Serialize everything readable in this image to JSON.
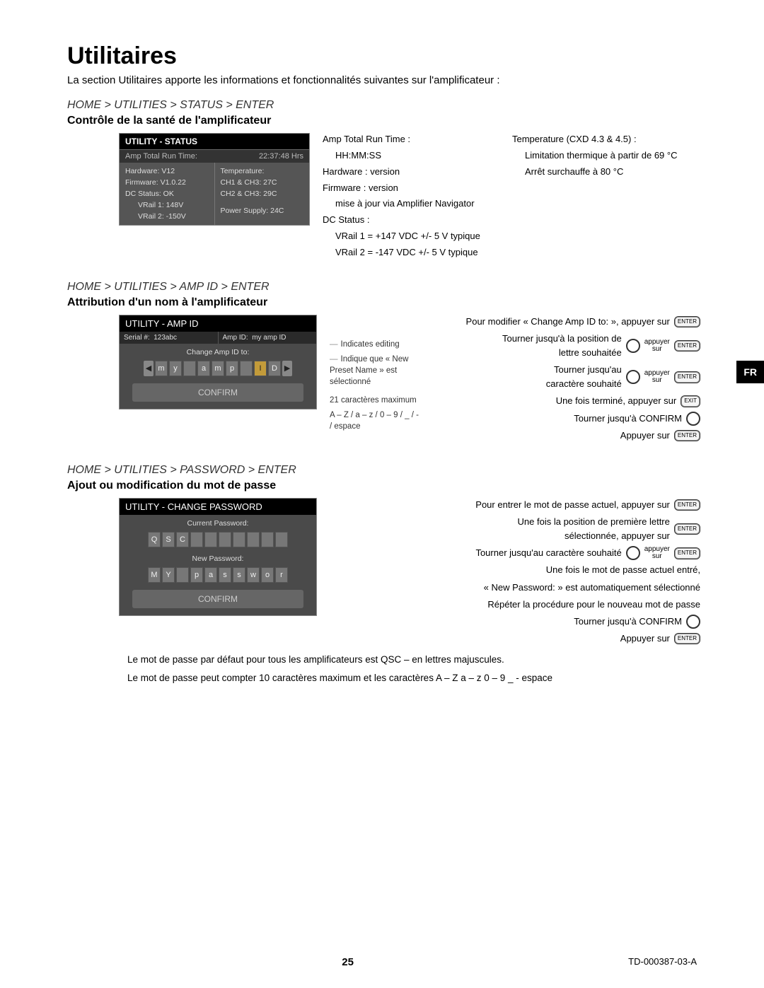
{
  "page": {
    "title": "Utilitaires",
    "intro": "La section Utilitaires apporte les informations et fonctionnalités suivantes sur l'amplificateur :",
    "page_number": "25",
    "doc_id": "TD-000387-03-A",
    "side_tab": "FR"
  },
  "status": {
    "nav": "HOME > UTILITIES > STATUS > ENTER",
    "heading": "Contrôle de la santé de l'amplificateur",
    "panel_title": "UTILITY - STATUS",
    "highlight_label": "Amp Total Run Time:",
    "highlight_value": "22:37:48 Hrs",
    "left": [
      "Hardware: V12",
      "Firmware: V1.0.22",
      "DC Status: OK",
      "VRail 1: 148V",
      "VRail 2: -150V"
    ],
    "right": [
      "Temperature:",
      "CH1 & CH3: 27C",
      "CH2 & CH3: 29C",
      "Power Supply: 24C"
    ],
    "desc1": {
      "a": "Amp Total Run Time :",
      "a2": "HH:MM:SS",
      "b": "Hardware : version",
      "c": "Firmware : version",
      "c2": "mise à jour via Amplifier Navigator",
      "d": "DC Status :",
      "d2": "VRail 1 = +147 VDC +/- 5 V typique",
      "d3": "VRail 2 = -147 VDC +/- 5 V typique"
    },
    "desc2": {
      "a": "Temperature (CXD 4.3 & 4.5) :",
      "a2": "Limitation thermique à partir de 69 °C",
      "a3": "Arrêt surchauffe à 80 °C"
    }
  },
  "ampid": {
    "nav": "HOME > UTILITIES > AMP ID > ENTER",
    "heading": "Attribution d'un nom à l'amplificateur",
    "panel_title": "UTILITY - AMP ID",
    "serial_lbl": "Serial #:",
    "serial_val": "123abc",
    "ampid_lbl": "Amp ID:",
    "ampid_val": "my amp ID",
    "change_lbl": "Change Amp ID to:",
    "chars": [
      "m",
      "y",
      " ",
      "a",
      "m",
      "p",
      " ",
      "I",
      "D"
    ],
    "hl_index": 7,
    "confirm": "CONFIRM",
    "callouts": {
      "c1": "Indicates editing",
      "c2": "Indique que « New Preset Name » est sélectionné",
      "c3": "21 caractères maximum",
      "c4": "A – Z / a – z / 0 – 9 / _ / - / espace"
    },
    "instr": {
      "i1": "Pour modifier « Change Amp ID to: », appuyer sur",
      "i2a": "Tourner jusqu'à la position de",
      "i2b": "lettre souhaitée",
      "i3a": "Tourner jusqu'au",
      "i3b": "caractère souhaité",
      "i4": "Une fois terminé, appuyer sur",
      "i5": "Tourner jusqu'à CONFIRM",
      "i6": "Appuyer sur",
      "press": "appuyer",
      "on": "sur",
      "enter": "ENTER",
      "exit": "EXIT"
    }
  },
  "pw": {
    "nav": "HOME > UTILITIES > PASSWORD > ENTER",
    "heading": "Ajout ou modification du mot de passe",
    "panel_title": "UTILITY - CHANGE PASSWORD",
    "cur_lbl": "Current Password:",
    "cur_chars": [
      "Q",
      "S",
      "C",
      "",
      "",
      "",
      "",
      "",
      "",
      ""
    ],
    "new_lbl": "New Password:",
    "new_chars": [
      "M",
      "Y",
      " ",
      "p",
      "a",
      "s",
      "s",
      "w",
      "o",
      "r"
    ],
    "confirm": "CONFIRM",
    "instr": {
      "i1": "Pour entrer le mot de passe actuel, appuyer sur",
      "i2a": "Une fois la position de première lettre",
      "i2b": "sélectionnée, appuyer sur",
      "i3": "Tourner jusqu'au caractère souhaité",
      "i4": "Une fois le mot de passe actuel entré,",
      "i5": "« New Password: » est automatiquement sélectionné",
      "i6": "Répéter la procédure pour le nouveau mot de passe",
      "i7": "Tourner jusqu'à CONFIRM",
      "i8": "Appuyer sur"
    },
    "note1": "Le mot de passe par défaut pour tous les amplificateurs est QSC – en lettres majuscules.",
    "note2": "Le mot de passe peut compter 10 caractères maximum et les caractères A – Z  a – z  0 – 9  _   -   espace"
  }
}
